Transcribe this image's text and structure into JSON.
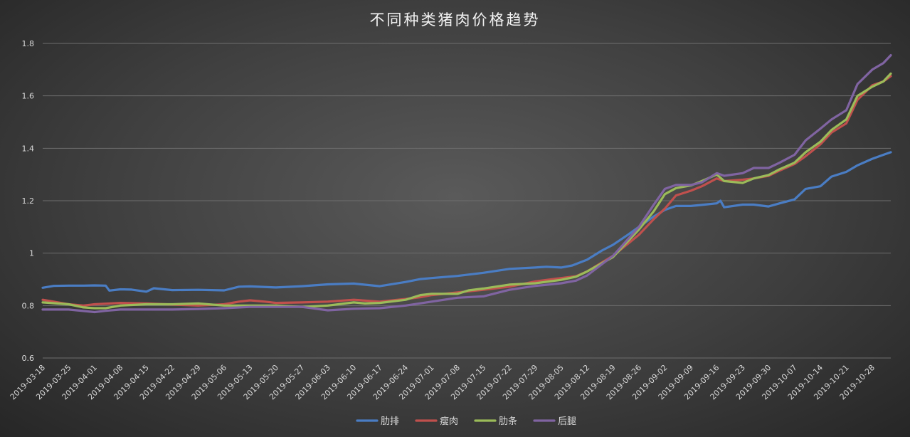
{
  "chart_data": {
    "type": "line",
    "title": "不同种类猪肉价格趋势",
    "xlabel": "",
    "ylabel": "",
    "ylim": [
      0.6,
      1.8
    ],
    "yticks": [
      "0.6",
      "0.8",
      "1",
      "1.2",
      "1.4",
      "1.6",
      "1.8"
    ],
    "grid": true,
    "legend_position": "bottom",
    "x_ticks": [
      "2019-03-18",
      "2019-03-25",
      "2019-04-01",
      "2019-04-08",
      "2019-04-15",
      "2019-04-22",
      "2019-04-29",
      "2019-05-06",
      "2019-05-13",
      "2019-05-20",
      "2019-05-27",
      "2019-06-03",
      "2019-06-10",
      "2019-06-17",
      "2019-06-24",
      "2019-07-01",
      "2019-07-08",
      "2019-07-15",
      "2019-07-22",
      "2019-07-29",
      "2019-08-05",
      "2019-08-12",
      "2019-08-19",
      "2019-08-26",
      "2019-09-02",
      "2019-09-09",
      "2019-09-16",
      "2019-09-23",
      "2019-09-30",
      "2019-10-07",
      "2019-10-14",
      "2019-10-21",
      "2019-10-28"
    ],
    "x_end": "2019-11-02",
    "series": [
      {
        "name": "肋排",
        "color": "#4a7dc4",
        "points": [
          [
            "2019-03-18",
            0.868
          ],
          [
            "2019-03-21",
            0.875
          ],
          [
            "2019-03-25",
            0.876
          ],
          [
            "2019-03-29",
            0.876
          ],
          [
            "2019-04-01",
            0.877
          ],
          [
            "2019-04-04",
            0.876
          ],
          [
            "2019-04-05",
            0.857
          ],
          [
            "2019-04-08",
            0.862
          ],
          [
            "2019-04-11",
            0.861
          ],
          [
            "2019-04-15",
            0.853
          ],
          [
            "2019-04-17",
            0.866
          ],
          [
            "2019-04-22",
            0.859
          ],
          [
            "2019-04-29",
            0.86
          ],
          [
            "2019-05-06",
            0.858
          ],
          [
            "2019-05-10",
            0.872
          ],
          [
            "2019-05-13",
            0.873
          ],
          [
            "2019-05-20",
            0.869
          ],
          [
            "2019-05-27",
            0.874
          ],
          [
            "2019-06-03",
            0.881
          ],
          [
            "2019-06-10",
            0.884
          ],
          [
            "2019-06-17",
            0.874
          ],
          [
            "2019-06-24",
            0.89
          ],
          [
            "2019-06-28",
            0.901
          ],
          [
            "2019-07-01",
            0.905
          ],
          [
            "2019-07-08",
            0.913
          ],
          [
            "2019-07-15",
            0.925
          ],
          [
            "2019-07-22",
            0.94
          ],
          [
            "2019-07-29",
            0.945
          ],
          [
            "2019-08-01",
            0.948
          ],
          [
            "2019-08-05",
            0.945
          ],
          [
            "2019-08-08",
            0.953
          ],
          [
            "2019-08-12",
            0.975
          ],
          [
            "2019-08-16",
            1.01
          ],
          [
            "2019-08-19",
            1.032
          ],
          [
            "2019-08-23",
            1.07
          ],
          [
            "2019-08-26",
            1.1
          ],
          [
            "2019-08-30",
            1.14
          ],
          [
            "2019-09-02",
            1.165
          ],
          [
            "2019-09-05",
            1.18
          ],
          [
            "2019-09-09",
            1.18
          ],
          [
            "2019-09-12",
            1.184
          ],
          [
            "2019-09-16",
            1.19
          ],
          [
            "2019-09-17",
            1.2
          ],
          [
            "2019-09-18",
            1.175
          ],
          [
            "2019-09-23",
            1.185
          ],
          [
            "2019-09-26",
            1.185
          ],
          [
            "2019-09-30",
            1.178
          ],
          [
            "2019-10-03",
            1.19
          ],
          [
            "2019-10-07",
            1.205
          ],
          [
            "2019-10-10",
            1.245
          ],
          [
            "2019-10-14",
            1.255
          ],
          [
            "2019-10-17",
            1.292
          ],
          [
            "2019-10-21",
            1.31
          ],
          [
            "2019-10-24",
            1.335
          ],
          [
            "2019-10-28",
            1.36
          ],
          [
            "2019-10-31",
            1.375
          ],
          [
            "2019-11-02",
            1.385
          ]
        ]
      },
      {
        "name": "瘦肉",
        "color": "#c0504d",
        "points": [
          [
            "2019-03-18",
            0.822
          ],
          [
            "2019-03-25",
            0.805
          ],
          [
            "2019-03-29",
            0.8
          ],
          [
            "2019-04-01",
            0.805
          ],
          [
            "2019-04-08",
            0.81
          ],
          [
            "2019-04-15",
            0.808
          ],
          [
            "2019-04-22",
            0.804
          ],
          [
            "2019-04-29",
            0.8
          ],
          [
            "2019-05-06",
            0.805
          ],
          [
            "2019-05-10",
            0.815
          ],
          [
            "2019-05-13",
            0.82
          ],
          [
            "2019-05-17",
            0.815
          ],
          [
            "2019-05-20",
            0.81
          ],
          [
            "2019-05-27",
            0.812
          ],
          [
            "2019-06-03",
            0.815
          ],
          [
            "2019-06-10",
            0.822
          ],
          [
            "2019-06-17",
            0.815
          ],
          [
            "2019-06-24",
            0.825
          ],
          [
            "2019-06-28",
            0.832
          ],
          [
            "2019-07-01",
            0.84
          ],
          [
            "2019-07-08",
            0.85
          ],
          [
            "2019-07-15",
            0.86
          ],
          [
            "2019-07-22",
            0.872
          ],
          [
            "2019-07-29",
            0.892
          ],
          [
            "2019-08-05",
            0.905
          ],
          [
            "2019-08-09",
            0.912
          ],
          [
            "2019-08-12",
            0.93
          ],
          [
            "2019-08-19",
            0.99
          ],
          [
            "2019-08-26",
            1.07
          ],
          [
            "2019-08-30",
            1.13
          ],
          [
            "2019-09-02",
            1.17
          ],
          [
            "2019-09-05",
            1.22
          ],
          [
            "2019-09-09",
            1.238
          ],
          [
            "2019-09-12",
            1.255
          ],
          [
            "2019-09-16",
            1.285
          ],
          [
            "2019-09-18",
            1.275
          ],
          [
            "2019-09-23",
            1.28
          ],
          [
            "2019-09-26",
            1.285
          ],
          [
            "2019-09-30",
            1.295
          ],
          [
            "2019-10-03",
            1.315
          ],
          [
            "2019-10-07",
            1.34
          ],
          [
            "2019-10-10",
            1.37
          ],
          [
            "2019-10-14",
            1.415
          ],
          [
            "2019-10-17",
            1.46
          ],
          [
            "2019-10-21",
            1.495
          ],
          [
            "2019-10-24",
            1.585
          ],
          [
            "2019-10-28",
            1.64
          ],
          [
            "2019-10-31",
            1.655
          ],
          [
            "2019-11-02",
            1.675
          ]
        ]
      },
      {
        "name": "肋条",
        "color": "#9bbb59",
        "points": [
          [
            "2019-03-18",
            0.812
          ],
          [
            "2019-03-25",
            0.805
          ],
          [
            "2019-03-29",
            0.793
          ],
          [
            "2019-04-01",
            0.79
          ],
          [
            "2019-04-04",
            0.79
          ],
          [
            "2019-04-08",
            0.8
          ],
          [
            "2019-04-15",
            0.805
          ],
          [
            "2019-04-22",
            0.805
          ],
          [
            "2019-04-29",
            0.808
          ],
          [
            "2019-05-06",
            0.8
          ],
          [
            "2019-05-13",
            0.8
          ],
          [
            "2019-05-20",
            0.8
          ],
          [
            "2019-05-27",
            0.795
          ],
          [
            "2019-06-03",
            0.8
          ],
          [
            "2019-06-10",
            0.812
          ],
          [
            "2019-06-13",
            0.808
          ],
          [
            "2019-06-17",
            0.81
          ],
          [
            "2019-06-24",
            0.822
          ],
          [
            "2019-06-28",
            0.84
          ],
          [
            "2019-07-01",
            0.845
          ],
          [
            "2019-07-08",
            0.845
          ],
          [
            "2019-07-11",
            0.858
          ],
          [
            "2019-07-15",
            0.865
          ],
          [
            "2019-07-22",
            0.88
          ],
          [
            "2019-07-29",
            0.885
          ],
          [
            "2019-08-05",
            0.898
          ],
          [
            "2019-08-09",
            0.91
          ],
          [
            "2019-08-12",
            0.93
          ],
          [
            "2019-08-19",
            0.985
          ],
          [
            "2019-08-26",
            1.09
          ],
          [
            "2019-08-30",
            1.16
          ],
          [
            "2019-09-02",
            1.225
          ],
          [
            "2019-09-05",
            1.248
          ],
          [
            "2019-09-09",
            1.258
          ],
          [
            "2019-09-12",
            1.275
          ],
          [
            "2019-09-16",
            1.3
          ],
          [
            "2019-09-18",
            1.275
          ],
          [
            "2019-09-23",
            1.268
          ],
          [
            "2019-09-26",
            1.285
          ],
          [
            "2019-09-30",
            1.298
          ],
          [
            "2019-10-03",
            1.32
          ],
          [
            "2019-10-07",
            1.345
          ],
          [
            "2019-10-10",
            1.385
          ],
          [
            "2019-10-14",
            1.425
          ],
          [
            "2019-10-17",
            1.47
          ],
          [
            "2019-10-21",
            1.51
          ],
          [
            "2019-10-24",
            1.6
          ],
          [
            "2019-10-28",
            1.635
          ],
          [
            "2019-10-31",
            1.655
          ],
          [
            "2019-11-02",
            1.685
          ]
        ]
      },
      {
        "name": "后腿",
        "color": "#8064a2",
        "points": [
          [
            "2019-03-18",
            0.785
          ],
          [
            "2019-03-25",
            0.785
          ],
          [
            "2019-04-01",
            0.775
          ],
          [
            "2019-04-04",
            0.78
          ],
          [
            "2019-04-08",
            0.785
          ],
          [
            "2019-04-15",
            0.785
          ],
          [
            "2019-04-22",
            0.785
          ],
          [
            "2019-04-29",
            0.787
          ],
          [
            "2019-05-06",
            0.79
          ],
          [
            "2019-05-13",
            0.795
          ],
          [
            "2019-05-20",
            0.795
          ],
          [
            "2019-05-27",
            0.795
          ],
          [
            "2019-06-03",
            0.782
          ],
          [
            "2019-06-10",
            0.788
          ],
          [
            "2019-06-17",
            0.79
          ],
          [
            "2019-06-24",
            0.8
          ],
          [
            "2019-07-01",
            0.815
          ],
          [
            "2019-07-08",
            0.83
          ],
          [
            "2019-07-15",
            0.835
          ],
          [
            "2019-07-22",
            0.86
          ],
          [
            "2019-07-29",
            0.875
          ],
          [
            "2019-08-05",
            0.885
          ],
          [
            "2019-08-09",
            0.895
          ],
          [
            "2019-08-12",
            0.915
          ],
          [
            "2019-08-19",
            0.99
          ],
          [
            "2019-08-26",
            1.1
          ],
          [
            "2019-08-30",
            1.185
          ],
          [
            "2019-09-02",
            1.245
          ],
          [
            "2019-09-05",
            1.26
          ],
          [
            "2019-09-09",
            1.26
          ],
          [
            "2019-09-12",
            1.27
          ],
          [
            "2019-09-16",
            1.305
          ],
          [
            "2019-09-18",
            1.295
          ],
          [
            "2019-09-23",
            1.305
          ],
          [
            "2019-09-26",
            1.325
          ],
          [
            "2019-09-30",
            1.325
          ],
          [
            "2019-10-03",
            1.345
          ],
          [
            "2019-10-07",
            1.375
          ],
          [
            "2019-10-10",
            1.43
          ],
          [
            "2019-10-14",
            1.475
          ],
          [
            "2019-10-17",
            1.51
          ],
          [
            "2019-10-21",
            1.545
          ],
          [
            "2019-10-24",
            1.645
          ],
          [
            "2019-10-28",
            1.7
          ],
          [
            "2019-10-31",
            1.725
          ],
          [
            "2019-11-02",
            1.755
          ]
        ]
      }
    ]
  }
}
